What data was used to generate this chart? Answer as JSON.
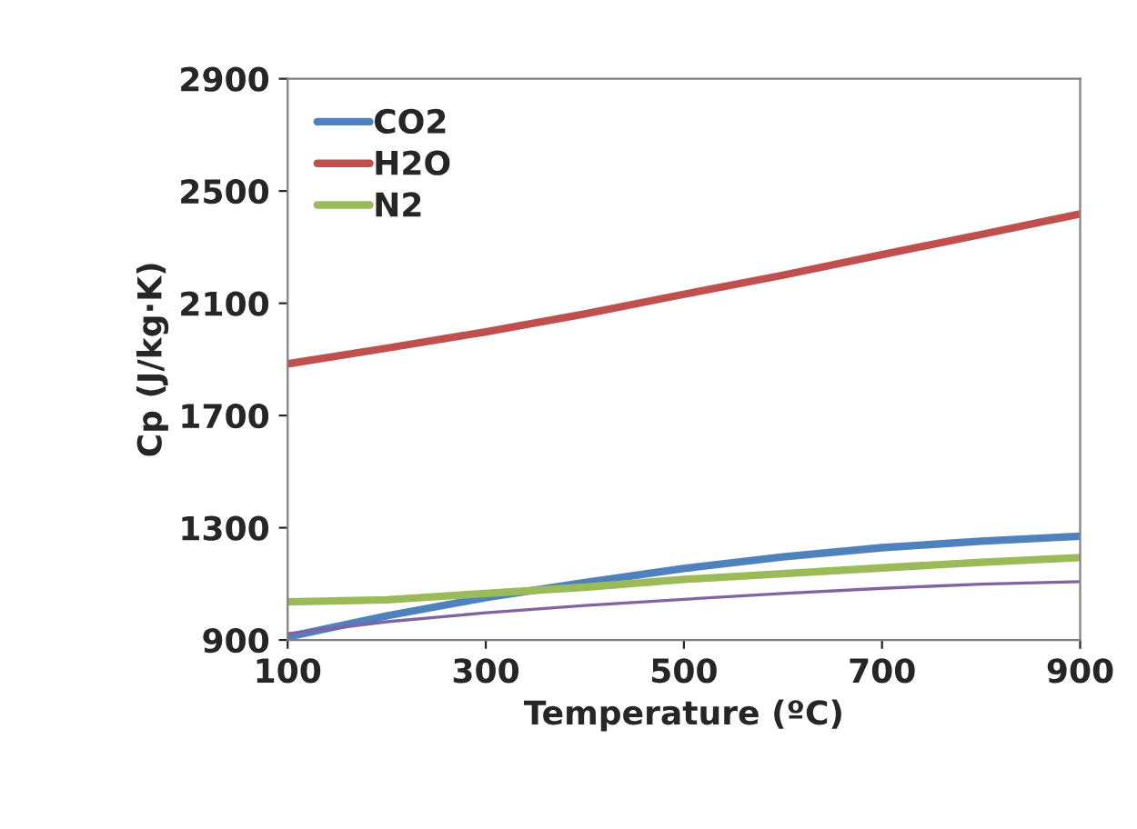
{
  "chart_data": {
    "type": "line",
    "xlabel": "Temperature (ºC)",
    "ylabel": "Cp (J/kg·K)",
    "x": [
      100,
      200,
      300,
      400,
      500,
      600,
      700,
      800,
      900
    ],
    "xlim": [
      100,
      900
    ],
    "xticks": [
      100,
      300,
      500,
      700,
      900
    ],
    "ylim": [
      900,
      2900
    ],
    "yticks": [
      900,
      1300,
      1700,
      2100,
      2500,
      2900
    ],
    "grid": false,
    "legend": "top left",
    "marker": "none",
    "line_style": "solid",
    "series": [
      {
        "name": "CO2",
        "color": "#4f81bd",
        "values": [
          911,
          986,
          1051,
          1105,
          1155,
          1196,
          1229,
          1252,
          1270
        ]
      },
      {
        "name": "H2O",
        "color": "#c0504d",
        "values": [
          1884,
          1940,
          1998,
          2062,
          2132,
          2200,
          2273,
          2345,
          2418
        ]
      },
      {
        "name": "N2",
        "color": "#9bbb59",
        "values": [
          1036,
          1043,
          1066,
          1088,
          1116,
          1136,
          1157,
          1177,
          1194
        ]
      },
      {
        "color": "#8064a2",
        "values": [
          922,
          965,
          997,
          1023,
          1045,
          1066,
          1084,
          1099,
          1108
        ]
      }
    ]
  }
}
